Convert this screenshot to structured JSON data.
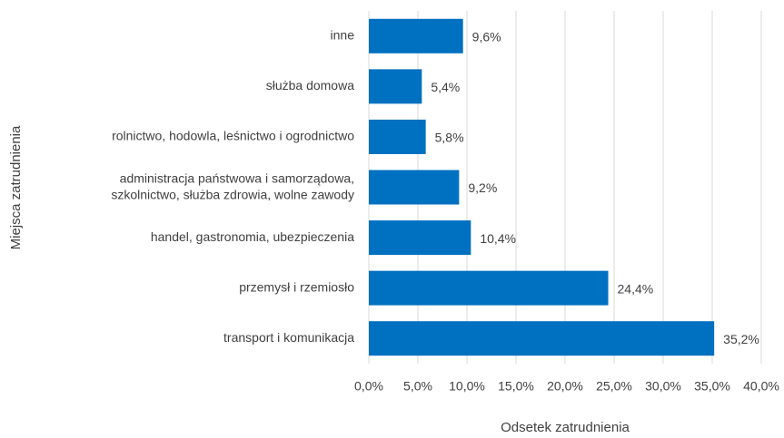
{
  "chart_data": {
    "type": "bar",
    "orientation": "horizontal",
    "x_axis_label": "Odsetek zatrudnienia",
    "y_axis_label": "Miejsca zatrudnienia",
    "categories": [
      "inne",
      "służba domowa",
      "rolnictwo, hodowla, leśnictwo i ogrodnictwo",
      "administracja państwowa i samorządowa,\nszkolnictwo, służba zdrowia, wolne zawody",
      "handel, gastronomia, ubezpieczenia",
      "przemysł i rzemiosło",
      "transport i komunikacja"
    ],
    "values": [
      9.6,
      5.4,
      5.8,
      9.2,
      10.4,
      24.4,
      35.2
    ],
    "value_labels": [
      "9,6%",
      "5,4%",
      "5,8%",
      "9,2%",
      "10,4%",
      "24,4%",
      "35,2%"
    ],
    "color": "#0070c0",
    "xlim": [
      0,
      40
    ],
    "xticks": [
      {
        "value": 0,
        "label": "0,0%"
      },
      {
        "value": 5,
        "label": "5,0%"
      },
      {
        "value": 10,
        "label": "10,0%"
      },
      {
        "value": 15,
        "label": "15,0%"
      },
      {
        "value": 20,
        "label": "20,0%"
      },
      {
        "value": 25,
        "label": "25,0%"
      },
      {
        "value": 30,
        "label": "30,0%"
      },
      {
        "value": 35,
        "label": "35,0%"
      },
      {
        "value": 40,
        "label": "40,0%"
      }
    ],
    "grid": true
  }
}
